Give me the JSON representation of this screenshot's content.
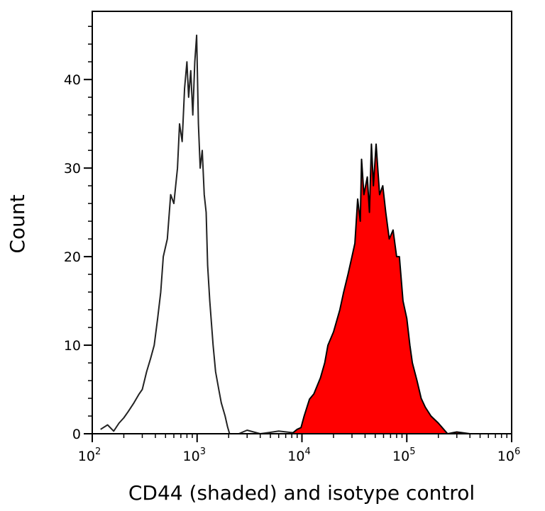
{
  "chart_data": {
    "type": "area",
    "title": "",
    "xlabel": "CD44 (shaded) and isotype control",
    "ylabel": "Count",
    "xscale": "log",
    "xlim": [
      100,
      1000000
    ],
    "ylim": [
      0,
      47.7
    ],
    "x_ticks": [
      {
        "base": "10",
        "exp": "2",
        "value": 100
      },
      {
        "base": "10",
        "exp": "3",
        "value": 1000
      },
      {
        "base": "10",
        "exp": "4",
        "value": 10000
      },
      {
        "base": "10",
        "exp": "5",
        "value": 100000
      },
      {
        "base": "10",
        "exp": "6",
        "value": 1000000
      }
    ],
    "y_ticks": [
      0,
      10,
      20,
      30,
      40
    ],
    "grid": false,
    "series": [
      {
        "fill": "none",
        "stroke": "#222222",
        "points": [
          [
            120,
            0.5
          ],
          [
            140,
            1
          ],
          [
            160,
            0.3
          ],
          [
            180,
            1.2
          ],
          [
            200,
            1.8
          ],
          [
            220,
            2.5
          ],
          [
            250,
            3.5
          ],
          [
            280,
            4.5
          ],
          [
            300,
            5
          ],
          [
            330,
            7
          ],
          [
            360,
            8.5
          ],
          [
            390,
            10
          ],
          [
            420,
            13
          ],
          [
            450,
            16
          ],
          [
            476,
            20
          ],
          [
            520,
            22
          ],
          [
            560,
            27
          ],
          [
            600,
            26
          ],
          [
            650,
            30
          ],
          [
            680,
            35
          ],
          [
            720,
            33
          ],
          [
            760,
            39
          ],
          [
            800,
            42
          ],
          [
            830,
            38
          ],
          [
            870,
            41
          ],
          [
            910,
            36
          ],
          [
            950,
            42
          ],
          [
            990,
            45
          ],
          [
            1030,
            35
          ],
          [
            1070,
            30
          ],
          [
            1120,
            32
          ],
          [
            1170,
            27
          ],
          [
            1220,
            25
          ],
          [
            1260,
            19
          ],
          [
            1320,
            15
          ],
          [
            1420,
            10
          ],
          [
            1500,
            7
          ],
          [
            1610,
            5
          ],
          [
            1700,
            3.5
          ],
          [
            1850,
            2
          ],
          [
            1950,
            0.8
          ],
          [
            2040,
            0
          ],
          [
            2500,
            0
          ],
          [
            3000,
            0.4
          ],
          [
            4000,
            0
          ],
          [
            6000,
            0.3
          ],
          [
            10000,
            0
          ]
        ]
      },
      {
        "fill": "#ff0000",
        "stroke": "#000000",
        "points": [
          [
            8000,
            0
          ],
          [
            9000,
            0.5
          ],
          [
            9800,
            0.7
          ],
          [
            10500,
            2
          ],
          [
            11800,
            3.9
          ],
          [
            13000,
            4.5
          ],
          [
            15000,
            6.3
          ],
          [
            16500,
            8
          ],
          [
            17700,
            10
          ],
          [
            20000,
            11.5
          ],
          [
            23000,
            14
          ],
          [
            25000,
            16
          ],
          [
            27500,
            18
          ],
          [
            30000,
            20
          ],
          [
            32000,
            21.5
          ],
          [
            34000,
            26.5
          ],
          [
            36000,
            24
          ],
          [
            37000,
            31
          ],
          [
            39000,
            27
          ],
          [
            42000,
            29
          ],
          [
            44000,
            25
          ],
          [
            46000,
            32.7
          ],
          [
            48000,
            28
          ],
          [
            51000,
            32.7
          ],
          [
            55000,
            27
          ],
          [
            59000,
            28
          ],
          [
            63000,
            25
          ],
          [
            68000,
            22
          ],
          [
            74000,
            23
          ],
          [
            80000,
            20
          ],
          [
            85000,
            20
          ],
          [
            92000,
            15
          ],
          [
            100000,
            13
          ],
          [
            107000,
            10
          ],
          [
            113000,
            8
          ],
          [
            125000,
            6
          ],
          [
            137000,
            4
          ],
          [
            150000,
            3
          ],
          [
            170000,
            2
          ],
          [
            200000,
            1.2
          ],
          [
            245000,
            0
          ],
          [
            300000,
            0.2
          ],
          [
            400000,
            0
          ]
        ]
      }
    ]
  }
}
